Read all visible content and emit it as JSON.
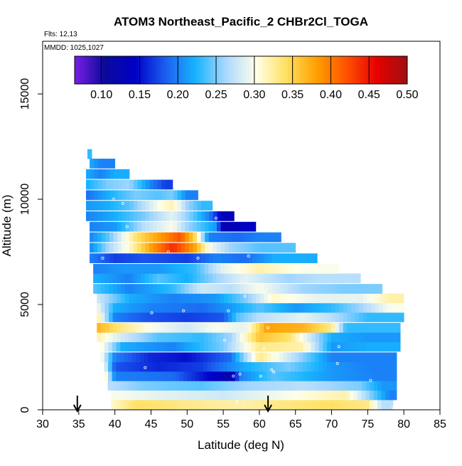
{
  "chart_data": {
    "type": "heatmap",
    "title": "ATOM3 Northeast_Pacific_2 CHBr2Cl_TOGA",
    "annotations": [
      "Flts: 12,13",
      "MMDD: 1025,1027"
    ],
    "xlabel": "Latitude (deg N)",
    "ylabel": "Altitude (m)",
    "xlim": [
      30,
      85
    ],
    "ylim": [
      0,
      17500
    ],
    "xticks": [
      "30",
      "35",
      "40",
      "45",
      "50",
      "55",
      "60",
      "65",
      "70",
      "75",
      "80",
      "85"
    ],
    "yticks": [
      "0",
      "5000",
      "10000",
      "15000"
    ],
    "colorbar": {
      "range": [
        0.065,
        0.5
      ],
      "ticks": [
        "0.10",
        "0.15",
        "0.20",
        "0.25",
        "0.30",
        "0.35",
        "0.40",
        "0.45",
        "0.50"
      ],
      "colors": [
        "#7a1ee6",
        "#0a0a9a",
        "#0000c8",
        "#1c5ef0",
        "#18b4ff",
        "#aad8ff",
        "#ffffea",
        "#ffe060",
        "#ffa000",
        "#ff5000",
        "#e60000",
        "#9e1010"
      ]
    },
    "arrows_latitude": [
      34.8,
      61.2
    ],
    "bands": [
      {
        "alt": 250,
        "lat_min": 39.5,
        "lat_max": 78.5,
        "segments": [
          [
            39.5,
            0.31
          ],
          [
            43,
            0.34
          ],
          [
            50,
            0.33
          ],
          [
            58,
            0.32
          ],
          [
            62,
            0.33
          ],
          [
            70,
            0.34
          ],
          [
            75,
            0.33
          ],
          [
            77,
            0.27
          ]
        ]
      },
      {
        "alt": 700,
        "lat_min": 39.5,
        "lat_max": 79,
        "segments": [
          [
            39.5,
            0.3
          ],
          [
            46,
            0.29
          ],
          [
            55,
            0.28
          ],
          [
            64,
            0.3
          ],
          [
            72,
            0.32
          ],
          [
            76,
            0.24
          ],
          [
            78,
            0.2
          ]
        ]
      },
      {
        "alt": 1150,
        "lat_min": 39,
        "lat_max": 79,
        "segments": [
          [
            39,
            0.27
          ],
          [
            44,
            0.25
          ],
          [
            52,
            0.24
          ],
          [
            58,
            0.26
          ],
          [
            66,
            0.27
          ],
          [
            74,
            0.25
          ],
          [
            77,
            0.21
          ]
        ]
      },
      {
        "alt": 1600,
        "lat_min": 38.5,
        "lat_max": 79,
        "segments": [
          [
            38.5,
            0.33
          ],
          [
            40,
            0.2
          ],
          [
            48,
            0.19
          ],
          [
            56,
            0.12
          ],
          [
            57.5,
            0.2
          ],
          [
            62,
            0.24
          ],
          [
            70,
            0.21
          ],
          [
            76,
            0.2
          ]
        ]
      },
      {
        "alt": 2050,
        "lat_min": 38.5,
        "lat_max": 79,
        "segments": [
          [
            38.5,
            0.3
          ],
          [
            40,
            0.18
          ],
          [
            46,
            0.16
          ],
          [
            52,
            0.17
          ],
          [
            58,
            0.22
          ],
          [
            64,
            0.25
          ],
          [
            70,
            0.21
          ],
          [
            75,
            0.2
          ]
        ]
      },
      {
        "alt": 2500,
        "lat_min": 38,
        "lat_max": 79,
        "segments": [
          [
            38,
            0.31
          ],
          [
            40,
            0.2
          ],
          [
            45,
            0.16
          ],
          [
            50,
            0.15
          ],
          [
            56,
            0.19
          ],
          [
            60,
            0.33
          ],
          [
            64,
            0.28
          ],
          [
            70,
            0.2
          ],
          [
            74,
            0.2
          ]
        ]
      },
      {
        "alt": 3000,
        "lat_min": 38,
        "lat_max": 79.5,
        "segments": [
          [
            38,
            0.31
          ],
          [
            41,
            0.22
          ],
          [
            48,
            0.2
          ],
          [
            55,
            0.25
          ],
          [
            60,
            0.33
          ],
          [
            66,
            0.32
          ],
          [
            70,
            0.21
          ],
          [
            75,
            0.22
          ]
        ]
      },
      {
        "alt": 3450,
        "lat_min": 37.5,
        "lat_max": 79.5,
        "segments": [
          [
            37.5,
            0.32
          ],
          [
            40,
            0.29
          ],
          [
            46,
            0.24
          ],
          [
            52,
            0.23
          ],
          [
            56,
            0.26
          ],
          [
            60,
            0.36
          ],
          [
            64,
            0.34
          ],
          [
            70,
            0.22
          ],
          [
            75,
            0.21
          ]
        ]
      },
      {
        "alt": 3900,
        "lat_min": 37.5,
        "lat_max": 79.5,
        "segments": [
          [
            37.5,
            0.37
          ],
          [
            41,
            0.33
          ],
          [
            45,
            0.3
          ],
          [
            50,
            0.28
          ],
          [
            54,
            0.3
          ],
          [
            58,
            0.29
          ],
          [
            61,
            0.38
          ],
          [
            66,
            0.37
          ],
          [
            70,
            0.33
          ],
          [
            72,
            0.23
          ]
        ]
      },
      {
        "alt": 4400,
        "lat_min": 37.5,
        "lat_max": 80,
        "segments": [
          [
            37.5,
            0.33
          ],
          [
            40,
            0.2
          ],
          [
            44,
            0.18
          ],
          [
            50,
            0.17
          ],
          [
            55,
            0.18
          ],
          [
            57,
            0.24
          ],
          [
            60,
            0.27
          ],
          [
            66,
            0.29
          ],
          [
            70,
            0.27
          ],
          [
            75,
            0.23
          ]
        ]
      },
      {
        "alt": 4850,
        "lat_min": 37.5,
        "lat_max": 80,
        "segments": [
          [
            37.5,
            0.3
          ],
          [
            40,
            0.22
          ],
          [
            45,
            0.2
          ],
          [
            52,
            0.19
          ],
          [
            56,
            0.21
          ],
          [
            60,
            0.24
          ],
          [
            65,
            0.21
          ],
          [
            70,
            0.23
          ],
          [
            74,
            0.26
          ],
          [
            78,
            0.3
          ]
        ]
      },
      {
        "alt": 5300,
        "lat_min": 37.5,
        "lat_max": 80,
        "segments": [
          [
            37.5,
            0.28
          ],
          [
            42,
            0.22
          ],
          [
            48,
            0.2
          ],
          [
            54,
            0.21
          ],
          [
            58,
            0.25
          ],
          [
            62,
            0.31
          ],
          [
            68,
            0.29
          ],
          [
            74,
            0.29
          ],
          [
            78,
            0.32
          ]
        ]
      },
      {
        "alt": 5750,
        "lat_min": 37,
        "lat_max": 77,
        "segments": [
          [
            37,
            0.24
          ],
          [
            42,
            0.2
          ],
          [
            48,
            0.23
          ],
          [
            52,
            0.28
          ],
          [
            56,
            0.27
          ],
          [
            60,
            0.3
          ],
          [
            66,
            0.26
          ],
          [
            72,
            0.25
          ]
        ]
      },
      {
        "alt": 6250,
        "lat_min": 37,
        "lat_max": 74,
        "segments": [
          [
            37,
            0.22
          ],
          [
            42,
            0.2
          ],
          [
            46,
            0.24
          ],
          [
            50,
            0.22
          ],
          [
            54,
            0.26
          ],
          [
            58,
            0.29
          ],
          [
            64,
            0.26
          ],
          [
            68,
            0.27
          ]
        ]
      },
      {
        "alt": 6700,
        "lat_min": 37,
        "lat_max": 71,
        "segments": [
          [
            37,
            0.2
          ],
          [
            41,
            0.21
          ],
          [
            46,
            0.21
          ],
          [
            51,
            0.23
          ],
          [
            55,
            0.29
          ],
          [
            60,
            0.32
          ],
          [
            66,
            0.3
          ]
        ]
      },
      {
        "alt": 7200,
        "lat_min": 36.5,
        "lat_max": 68,
        "segments": [
          [
            36.5,
            0.2
          ],
          [
            40,
            0.17
          ],
          [
            44,
            0.18
          ],
          [
            50,
            0.17
          ],
          [
            54,
            0.2
          ],
          [
            58,
            0.19
          ],
          [
            62,
            0.22
          ]
        ]
      },
      {
        "alt": 7700,
        "lat_min": 36.5,
        "lat_max": 65,
        "segments": [
          [
            36.5,
            0.2
          ],
          [
            39,
            0.26
          ],
          [
            42,
            0.31
          ],
          [
            45,
            0.38
          ],
          [
            48,
            0.44
          ],
          [
            51,
            0.38
          ],
          [
            53,
            0.3
          ],
          [
            56,
            0.26
          ],
          [
            60,
            0.24
          ]
        ]
      },
      {
        "alt": 8200,
        "lat_min": 36.5,
        "lat_max": 63,
        "segments": [
          [
            36.5,
            0.2
          ],
          [
            39,
            0.24
          ],
          [
            43,
            0.34
          ],
          [
            46,
            0.38
          ],
          [
            49,
            0.42
          ],
          [
            51,
            0.35
          ],
          [
            53,
            0.2
          ],
          [
            57,
            0.19
          ],
          [
            60,
            0.2
          ]
        ]
      },
      {
        "alt": 8700,
        "lat_min": 36.5,
        "lat_max": 59.5,
        "segments": [
          [
            36.5,
            0.2
          ],
          [
            40,
            0.21
          ],
          [
            44,
            0.27
          ],
          [
            48,
            0.3
          ],
          [
            50,
            0.26
          ],
          [
            54,
            0.21
          ],
          [
            55,
            0.12
          ],
          [
            58,
            0.14
          ]
        ]
      },
      {
        "alt": 9200,
        "lat_min": 36,
        "lat_max": 56.5,
        "segments": [
          [
            36,
            0.2
          ],
          [
            40,
            0.22
          ],
          [
            44,
            0.25
          ],
          [
            48,
            0.29
          ],
          [
            51,
            0.24
          ],
          [
            53,
            0.2
          ],
          [
            55,
            0.13
          ]
        ]
      },
      {
        "alt": 9700,
        "lat_min": 36,
        "lat_max": 53.5,
        "segments": [
          [
            36,
            0.21
          ],
          [
            39,
            0.22
          ],
          [
            42,
            0.24
          ],
          [
            46,
            0.3
          ],
          [
            48,
            0.32
          ],
          [
            50,
            0.26
          ],
          [
            52,
            0.23
          ]
        ]
      },
      {
        "alt": 10200,
        "lat_min": 36,
        "lat_max": 51.5,
        "segments": [
          [
            36,
            0.19
          ],
          [
            39,
            0.22
          ],
          [
            43,
            0.25
          ],
          [
            46,
            0.24
          ],
          [
            48,
            0.25
          ],
          [
            50,
            0.2
          ]
        ]
      },
      {
        "alt": 10700,
        "lat_min": 36,
        "lat_max": 48,
        "segments": [
          [
            36,
            0.22
          ],
          [
            39,
            0.25
          ],
          [
            42,
            0.26
          ],
          [
            45,
            0.2
          ],
          [
            47,
            0.17
          ]
        ]
      },
      {
        "alt": 11200,
        "lat_min": 36,
        "lat_max": 42,
        "segments": [
          [
            36,
            0.22
          ],
          [
            38,
            0.2
          ],
          [
            40,
            0.22
          ]
        ]
      },
      {
        "alt": 11700,
        "lat_min": 36.5,
        "lat_max": 40,
        "segments": [
          [
            36.5,
            0.22
          ],
          [
            38,
            0.2
          ]
        ]
      },
      {
        "alt": 12150,
        "lat_min": 36.2,
        "lat_max": 36.8,
        "segments": [
          [
            36.2,
            0.23
          ]
        ]
      }
    ],
    "sample_points": [
      [
        38.3,
        7200
      ],
      [
        39.8,
        10000
      ],
      [
        41.7,
        8700
      ],
      [
        41.1,
        9800
      ],
      [
        44.2,
        2000
      ],
      [
        45.1,
        4600
      ],
      [
        47.4,
        7500
      ],
      [
        49.5,
        4700
      ],
      [
        51.5,
        7200
      ],
      [
        52.8,
        3800
      ],
      [
        54.0,
        9100
      ],
      [
        55.2,
        3300
      ],
      [
        55.7,
        4700
      ],
      [
        56.4,
        1600
      ],
      [
        57.3,
        1700
      ],
      [
        56.9,
        400
      ],
      [
        58.0,
        5400
      ],
      [
        58.5,
        7300
      ],
      [
        60.2,
        1600
      ],
      [
        60.6,
        2900
      ],
      [
        61.2,
        3900
      ],
      [
        61.7,
        1900
      ],
      [
        62.0,
        1800
      ],
      [
        70.8,
        2200
      ],
      [
        71.0,
        3000
      ],
      [
        75.4,
        1400
      ],
      [
        78.5,
        100
      ],
      [
        60.7,
        5600
      ]
    ]
  }
}
